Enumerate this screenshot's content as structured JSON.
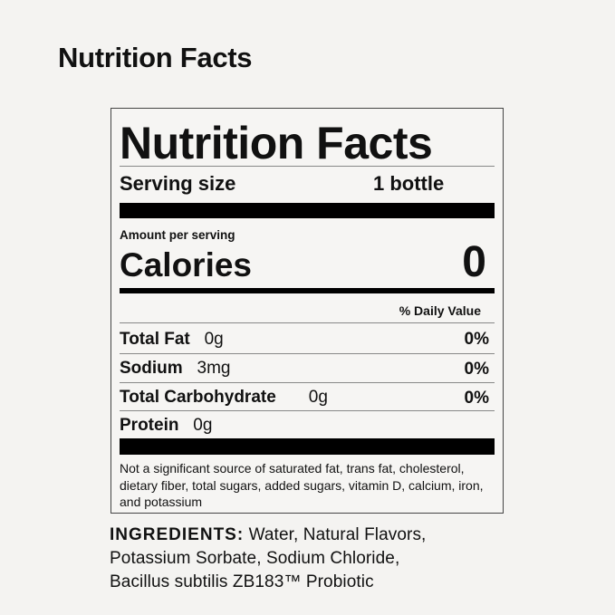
{
  "page_title": "Nutrition Facts",
  "label": {
    "heading": "Nutrition Facts",
    "serving_size_label": "Serving size",
    "serving_size_value": "1 bottle",
    "amount_per_serving": "Amount per serving",
    "calories_label": "Calories",
    "calories_value": "0",
    "daily_value_header": "% Daily Value",
    "nutrients": [
      {
        "name": "Total Fat",
        "amount": "0g",
        "dv": "0%"
      },
      {
        "name": "Sodium",
        "amount": "3mg",
        "dv": "0%"
      },
      {
        "name": "Total Carbohydrate",
        "amount": "0g",
        "dv": "0%"
      },
      {
        "name": "Protein",
        "amount": "0g",
        "dv": ""
      }
    ],
    "footnote": "Not a significant source of saturated fat, trans fat, cholesterol, dietary fiber, total sugars, added sugars, vitamin D, calcium, iron, and potassium"
  },
  "ingredients": {
    "label": "INGREDIENTS:",
    "text": " Water, Natural Flavors, Potassium Sorbate, Sodium Chloride, Bacillus subtilis ZB183™ Probiotic"
  }
}
